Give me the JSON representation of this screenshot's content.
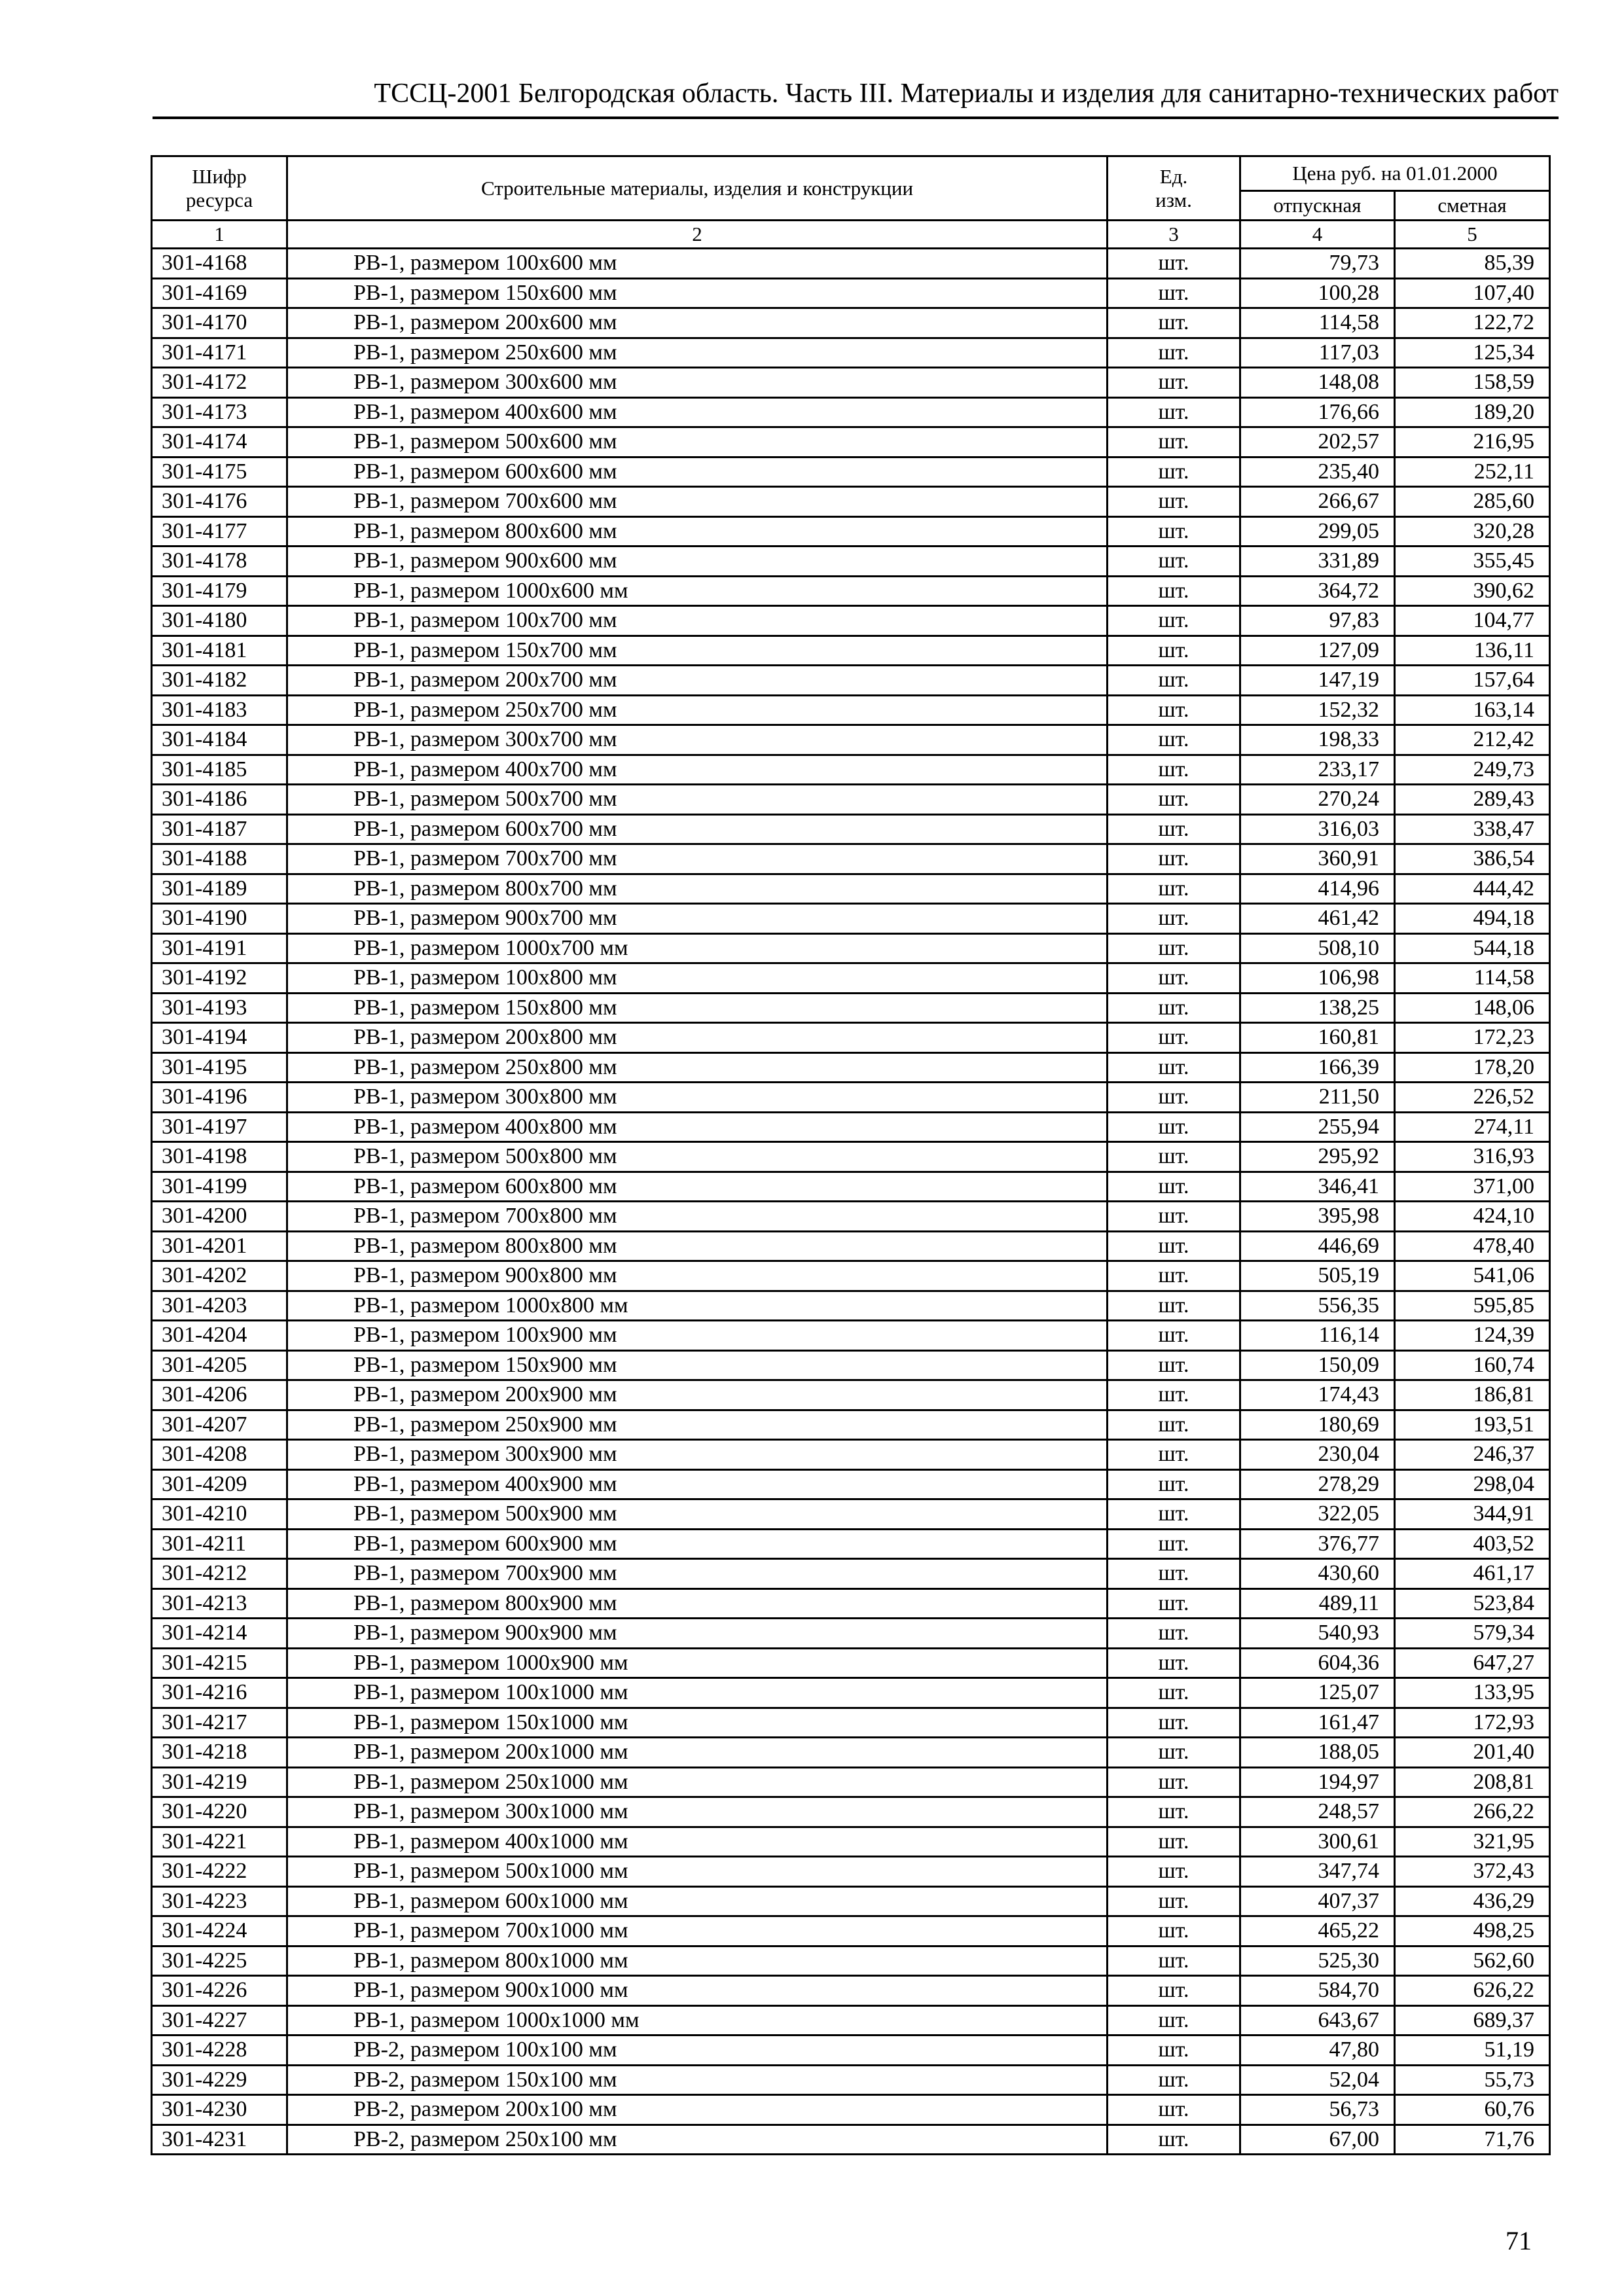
{
  "header": {
    "title": "ТССЦ-2001 Белгородская область. Часть III. Материалы и изделия для санитарно-технических работ"
  },
  "table": {
    "columns": {
      "code": "Шифр ресурса",
      "name": "Строительные материалы, изделия и конструкции",
      "unit": "Ед. изм.",
      "price_group": "Цена руб. на 01.01.2000",
      "release": "отпускная",
      "estimate": "сметная"
    },
    "column_numbers": [
      "1",
      "2",
      "3",
      "4",
      "5"
    ],
    "rows": [
      [
        "301-4168",
        "РВ-1, размером 100х600 мм",
        "шт.",
        "79,73",
        "85,39"
      ],
      [
        "301-4169",
        "РВ-1, размером 150х600 мм",
        "шт.",
        "100,28",
        "107,40"
      ],
      [
        "301-4170",
        "РВ-1, размером 200х600 мм",
        "шт.",
        "114,58",
        "122,72"
      ],
      [
        "301-4171",
        "РВ-1, размером 250х600 мм",
        "шт.",
        "117,03",
        "125,34"
      ],
      [
        "301-4172",
        "РВ-1, размером 300х600 мм",
        "шт.",
        "148,08",
        "158,59"
      ],
      [
        "301-4173",
        "РВ-1, размером 400х600 мм",
        "шт.",
        "176,66",
        "189,20"
      ],
      [
        "301-4174",
        "РВ-1, размером 500х600 мм",
        "шт.",
        "202,57",
        "216,95"
      ],
      [
        "301-4175",
        "РВ-1, размером 600х600 мм",
        "шт.",
        "235,40",
        "252,11"
      ],
      [
        "301-4176",
        "РВ-1, размером 700х600 мм",
        "шт.",
        "266,67",
        "285,60"
      ],
      [
        "301-4177",
        "РВ-1, размером 800х600 мм",
        "шт.",
        "299,05",
        "320,28"
      ],
      [
        "301-4178",
        "РВ-1, размером 900х600 мм",
        "шт.",
        "331,89",
        "355,45"
      ],
      [
        "301-4179",
        "РВ-1, размером 1000х600 мм",
        "шт.",
        "364,72",
        "390,62"
      ],
      [
        "301-4180",
        "РВ-1, размером 100х700 мм",
        "шт.",
        "97,83",
        "104,77"
      ],
      [
        "301-4181",
        "РВ-1, размером 150х700 мм",
        "шт.",
        "127,09",
        "136,11"
      ],
      [
        "301-4182",
        "РВ-1, размером 200х700 мм",
        "шт.",
        "147,19",
        "157,64"
      ],
      [
        "301-4183",
        "РВ-1, размером 250х700 мм",
        "шт.",
        "152,32",
        "163,14"
      ],
      [
        "301-4184",
        "РВ-1, размером 300х700 мм",
        "шт.",
        "198,33",
        "212,42"
      ],
      [
        "301-4185",
        "РВ-1, размером 400х700 мм",
        "шт.",
        "233,17",
        "249,73"
      ],
      [
        "301-4186",
        "РВ-1, размером 500х700 мм",
        "шт.",
        "270,24",
        "289,43"
      ],
      [
        "301-4187",
        "РВ-1, размером 600х700 мм",
        "шт.",
        "316,03",
        "338,47"
      ],
      [
        "301-4188",
        "РВ-1, размером 700х700 мм",
        "шт.",
        "360,91",
        "386,54"
      ],
      [
        "301-4189",
        "РВ-1, размером 800х700 мм",
        "шт.",
        "414,96",
        "444,42"
      ],
      [
        "301-4190",
        "РВ-1, размером 900х700 мм",
        "шт.",
        "461,42",
        "494,18"
      ],
      [
        "301-4191",
        "РВ-1, размером 1000х700 мм",
        "шт.",
        "508,10",
        "544,18"
      ],
      [
        "301-4192",
        "РВ-1, размером 100х800 мм",
        "шт.",
        "106,98",
        "114,58"
      ],
      [
        "301-4193",
        "РВ-1, размером 150х800 мм",
        "шт.",
        "138,25",
        "148,06"
      ],
      [
        "301-4194",
        "РВ-1, размером 200х800 мм",
        "шт.",
        "160,81",
        "172,23"
      ],
      [
        "301-4195",
        "РВ-1, размером 250х800 мм",
        "шт.",
        "166,39",
        "178,20"
      ],
      [
        "301-4196",
        "РВ-1, размером 300х800 мм",
        "шт.",
        "211,50",
        "226,52"
      ],
      [
        "301-4197",
        "РВ-1, размером 400х800 мм",
        "шт.",
        "255,94",
        "274,11"
      ],
      [
        "301-4198",
        "РВ-1, размером 500х800 мм",
        "шт.",
        "295,92",
        "316,93"
      ],
      [
        "301-4199",
        "РВ-1, размером 600х800 мм",
        "шт.",
        "346,41",
        "371,00"
      ],
      [
        "301-4200",
        "РВ-1, размером 700х800 мм",
        "шт.",
        "395,98",
        "424,10"
      ],
      [
        "301-4201",
        "РВ-1, размером 800х800 мм",
        "шт.",
        "446,69",
        "478,40"
      ],
      [
        "301-4202",
        "РВ-1, размером 900х800 мм",
        "шт.",
        "505,19",
        "541,06"
      ],
      [
        "301-4203",
        "РВ-1, размером 1000х800 мм",
        "шт.",
        "556,35",
        "595,85"
      ],
      [
        "301-4204",
        "РВ-1, размером 100х900 мм",
        "шт.",
        "116,14",
        "124,39"
      ],
      [
        "301-4205",
        "РВ-1, размером 150х900 мм",
        "шт.",
        "150,09",
        "160,74"
      ],
      [
        "301-4206",
        "РВ-1, размером 200х900 мм",
        "шт.",
        "174,43",
        "186,81"
      ],
      [
        "301-4207",
        "РВ-1, размером 250х900 мм",
        "шт.",
        "180,69",
        "193,51"
      ],
      [
        "301-4208",
        "РВ-1, размером 300х900 мм",
        "шт.",
        "230,04",
        "246,37"
      ],
      [
        "301-4209",
        "РВ-1, размером 400х900 мм",
        "шт.",
        "278,29",
        "298,04"
      ],
      [
        "301-4210",
        "РВ-1, размером 500х900 мм",
        "шт.",
        "322,05",
        "344,91"
      ],
      [
        "301-4211",
        "РВ-1, размером 600х900 мм",
        "шт.",
        "376,77",
        "403,52"
      ],
      [
        "301-4212",
        "РВ-1, размером 700х900 мм",
        "шт.",
        "430,60",
        "461,17"
      ],
      [
        "301-4213",
        "РВ-1, размером 800х900 мм",
        "шт.",
        "489,11",
        "523,84"
      ],
      [
        "301-4214",
        "РВ-1, размером 900х900 мм",
        "шт.",
        "540,93",
        "579,34"
      ],
      [
        "301-4215",
        "РВ-1, размером 1000х900 мм",
        "шт.",
        "604,36",
        "647,27"
      ],
      [
        "301-4216",
        "РВ-1, размером 100х1000 мм",
        "шт.",
        "125,07",
        "133,95"
      ],
      [
        "301-4217",
        "РВ-1, размером 150х1000 мм",
        "шт.",
        "161,47",
        "172,93"
      ],
      [
        "301-4218",
        "РВ-1, размером 200х1000 мм",
        "шт.",
        "188,05",
        "201,40"
      ],
      [
        "301-4219",
        "РВ-1, размером 250х1000 мм",
        "шт.",
        "194,97",
        "208,81"
      ],
      [
        "301-4220",
        "РВ-1, размером 300х1000 мм",
        "шт.",
        "248,57",
        "266,22"
      ],
      [
        "301-4221",
        "РВ-1, размером 400х1000 мм",
        "шт.",
        "300,61",
        "321,95"
      ],
      [
        "301-4222",
        "РВ-1, размером 500х1000 мм",
        "шт.",
        "347,74",
        "372,43"
      ],
      [
        "301-4223",
        "РВ-1, размером 600х1000 мм",
        "шт.",
        "407,37",
        "436,29"
      ],
      [
        "301-4224",
        "РВ-1, размером 700х1000 мм",
        "шт.",
        "465,22",
        "498,25"
      ],
      [
        "301-4225",
        "РВ-1, размером 800х1000 мм",
        "шт.",
        "525,30",
        "562,60"
      ],
      [
        "301-4226",
        "РВ-1, размером 900х1000 мм",
        "шт.",
        "584,70",
        "626,22"
      ],
      [
        "301-4227",
        "РВ-1, размером 1000х1000 мм",
        "шт.",
        "643,67",
        "689,37"
      ],
      [
        "301-4228",
        "РВ-2, размером 100х100 мм",
        "шт.",
        "47,80",
        "51,19"
      ],
      [
        "301-4229",
        "РВ-2, размером 150х100 мм",
        "шт.",
        "52,04",
        "55,73"
      ],
      [
        "301-4230",
        "РВ-2, размером 200х100 мм",
        "шт.",
        "56,73",
        "60,76"
      ],
      [
        "301-4231",
        "РВ-2, размером 250х100 мм",
        "шт.",
        "67,00",
        "71,76"
      ]
    ]
  },
  "footer": {
    "page_number": "71"
  }
}
